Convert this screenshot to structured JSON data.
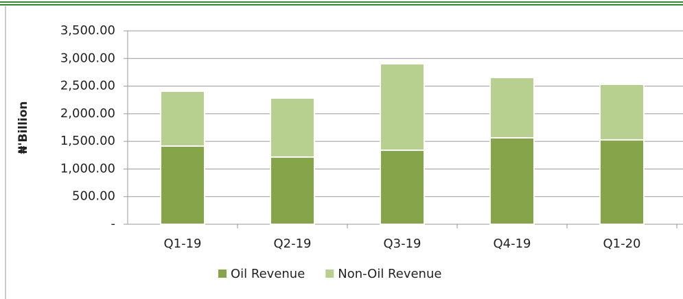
{
  "chart_data": {
    "type": "stacked_bar",
    "y_label": "₦'Billion",
    "categories": [
      "Q1-19",
      "Q2-19",
      "Q3-19",
      "Q4-19",
      "Q1-20"
    ],
    "series": [
      {
        "name": "Oil Revenue",
        "color": "#86a44a",
        "values": [
          1415,
          1216,
          1340,
          1564,
          1527
        ]
      },
      {
        "name": "Non-Oil Revenue",
        "color": "#b7cf8f",
        "values": [
          993,
          1068,
          1564,
          1092,
          1005
        ]
      }
    ],
    "ylim": [
      0,
      3500
    ],
    "yticks": [
      {
        "value": 0,
        "label": "-"
      },
      {
        "value": 500,
        "label": "500.00"
      },
      {
        "value": 1000,
        "label": "1,000.00"
      },
      {
        "value": 1500,
        "label": "1,500.00"
      },
      {
        "value": 2000,
        "label": "2,000.00"
      },
      {
        "value": 2500,
        "label": "2,500.00"
      },
      {
        "value": 3000,
        "label": "3,000.00"
      },
      {
        "value": 3500,
        "label": "3,500.00"
      }
    ],
    "grid": true
  }
}
